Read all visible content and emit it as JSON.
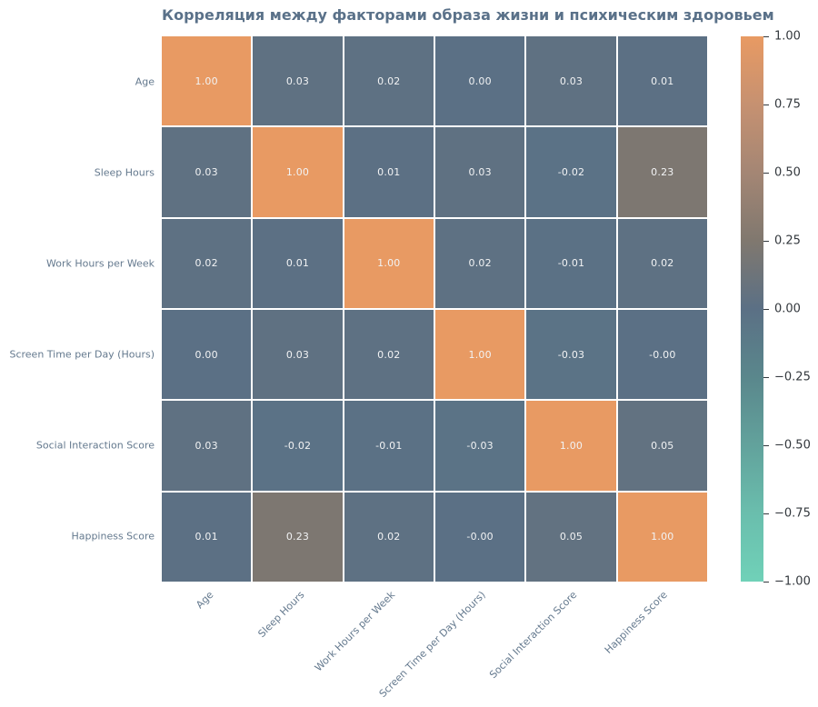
{
  "figure": {
    "title": "Корреляция между факторами образа жизни и психическим здоровьем"
  },
  "chart_data": {
    "type": "heatmap",
    "title": "Корреляция между факторами образа жизни и психическим здоровьем",
    "categories": [
      "Age",
      "Sleep Hours",
      "Work Hours per Week",
      "Screen Time per Day (Hours)",
      "Social Interaction Score",
      "Happiness Score"
    ],
    "matrix": [
      [
        "1.00",
        "0.03",
        "0.02",
        "0.00",
        "0.03",
        "0.01"
      ],
      [
        "0.03",
        "1.00",
        "0.01",
        "0.03",
        "-0.02",
        "0.23"
      ],
      [
        "0.02",
        "0.01",
        "1.00",
        "0.02",
        "-0.01",
        "0.02"
      ],
      [
        "0.00",
        "0.03",
        "0.02",
        "1.00",
        "-0.03",
        "-0.00"
      ],
      [
        "0.03",
        "-0.02",
        "-0.01",
        "-0.03",
        "1.00",
        "0.05"
      ],
      [
        "0.01",
        "0.23",
        "0.02",
        "-0.00",
        "0.05",
        "1.00"
      ]
    ],
    "value_format": "two-decimals",
    "grid": false,
    "legend_position": "right-colorbar",
    "colorscale": {
      "stops": [
        {
          "v": -1.0,
          "color": "#70d1b8"
        },
        {
          "v": -0.75,
          "color": "#6abead"
        },
        {
          "v": -0.5,
          "color": "#62a29c"
        },
        {
          "v": -0.25,
          "color": "#5a878c"
        },
        {
          "v": 0.0,
          "color": "#5b7085"
        },
        {
          "v": 0.25,
          "color": "#80786f"
        },
        {
          "v": 0.5,
          "color": "#a48674"
        },
        {
          "v": 0.75,
          "color": "#c69171"
        },
        {
          "v": 1.0,
          "color": "#e89a63"
        }
      ]
    },
    "colorbar": {
      "range": [
        -1,
        1
      ],
      "tick_values": [
        1.0,
        0.75,
        0.5,
        0.25,
        0.0,
        -0.25,
        -0.5,
        -0.75,
        -1.0
      ],
      "tick_labels": [
        "1.00",
        "0.75",
        "0.50",
        "0.25",
        "0.00",
        "−0.25",
        "−0.50",
        "−0.75",
        "−1.00"
      ]
    }
  },
  "style": {
    "background": "#ffffff",
    "title_color": "#5a7189",
    "axis_label_color": "#64798e",
    "cell_text_color": "#f2f3f4",
    "colorbar_tick_color": "#33383d",
    "grid_line_color": "#ffffff",
    "accent_positive": "#e89a63",
    "accent_zero": "#5b7085",
    "accent_negative": "#70d1b8"
  }
}
